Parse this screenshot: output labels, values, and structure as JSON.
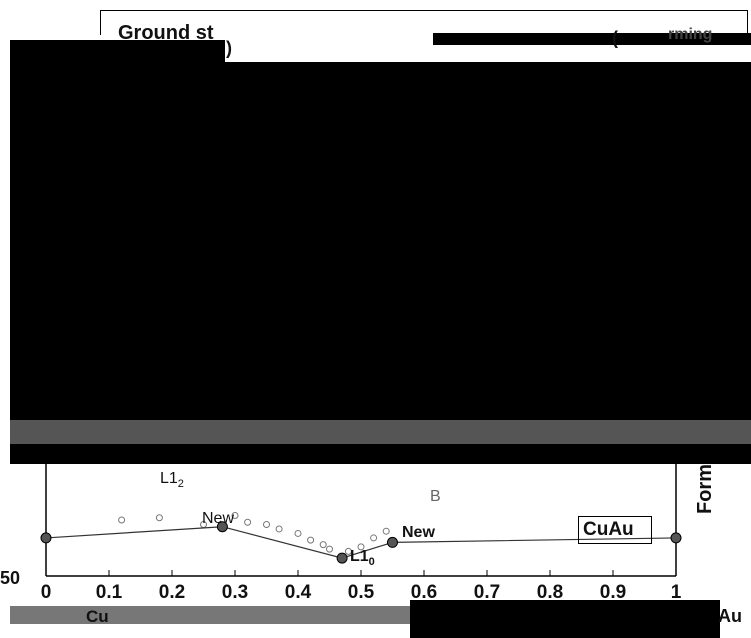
{
  "header": {
    "title_fragment": "Ground st",
    "paren_fragment": "(",
    "paren_close": ")",
    "sub_fragment": "rming"
  },
  "legend": {
    "entry": "CuAu"
  },
  "annotations": {
    "l12_base": "L1",
    "l12_sub": "2",
    "l10_base": "L1",
    "l10_sub": "0",
    "new_left": "New",
    "new_right": "New",
    "b_label": "B"
  },
  "axis_labels": {
    "left_element": "Cu",
    "right_element": "Au",
    "right_vertical": "Form"
  },
  "colors": {
    "ink": "#000000",
    "marker": "#555555",
    "background": "#ffffff"
  },
  "chart_data": {
    "type": "scatter",
    "title": "",
    "xlabel": "",
    "ylabel": "",
    "xlim": [
      0,
      1
    ],
    "ylim": [
      -50,
      0
    ],
    "x_ticks": [
      "0",
      "0.1",
      "0.2",
      "0.3",
      "0.4",
      "0.5",
      "0.6",
      "0.7",
      "0.8",
      "0.9",
      "1"
    ],
    "y_ticks_visible": [
      "-50"
    ],
    "hull_points": [
      {
        "x": 0.0,
        "y": -33
      },
      {
        "x": 0.28,
        "y": -28
      },
      {
        "x": 0.47,
        "y": -42
      },
      {
        "x": 0.55,
        "y": -35
      },
      {
        "x": 1.0,
        "y": -33
      }
    ],
    "candidate_points": [
      {
        "x": 0.12,
        "y": -25
      },
      {
        "x": 0.18,
        "y": -24
      },
      {
        "x": 0.25,
        "y": -27
      },
      {
        "x": 0.3,
        "y": -23
      },
      {
        "x": 0.32,
        "y": -26
      },
      {
        "x": 0.35,
        "y": -27
      },
      {
        "x": 0.37,
        "y": -29
      },
      {
        "x": 0.4,
        "y": -31
      },
      {
        "x": 0.42,
        "y": -34
      },
      {
        "x": 0.44,
        "y": -36
      },
      {
        "x": 0.45,
        "y": -38
      },
      {
        "x": 0.48,
        "y": -39
      },
      {
        "x": 0.5,
        "y": -37
      },
      {
        "x": 0.52,
        "y": -33
      },
      {
        "x": 0.54,
        "y": -30
      }
    ]
  }
}
